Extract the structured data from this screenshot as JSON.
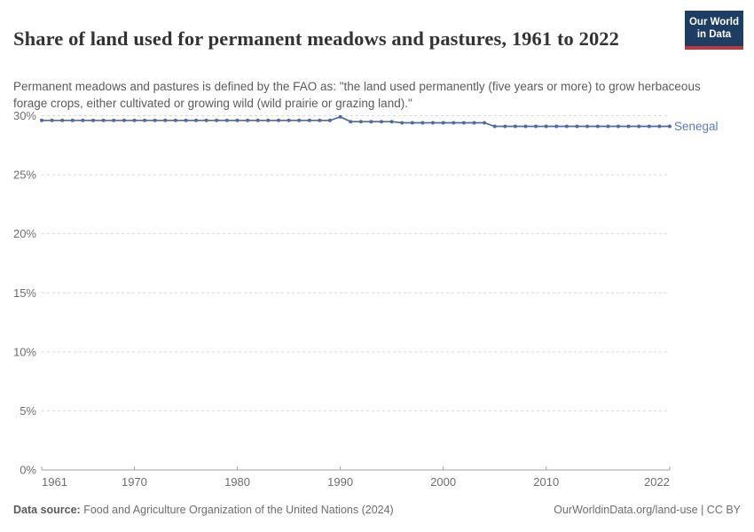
{
  "header": {
    "title": "Share of land used for permanent meadows and pastures, 1961 to 2022",
    "subtitle": "Permanent meadows and pastures is defined by the FAO as: \"the land used permanently (five years or more) to grow herbaceous forage crops, either cultivated or growing wild (wild prairie or grazing land).\"",
    "logo": {
      "line1": "Our World",
      "line2": "in Data"
    }
  },
  "chart_data": {
    "type": "line",
    "title": "Share of land used for permanent meadows and pastures, 1961 to 2022",
    "xlabel": "",
    "ylabel": "",
    "xlim": [
      1961,
      2022
    ],
    "ylim": [
      0,
      30
    ],
    "x_ticks": [
      1961,
      1970,
      1980,
      1990,
      2000,
      2010,
      2022
    ],
    "y_ticks": [
      0,
      5,
      10,
      15,
      20,
      25,
      30
    ],
    "y_tick_suffix": "%",
    "grid": "horizontal-dashed",
    "legend_position": "end-of-line-label",
    "series": [
      {
        "name": "Senegal",
        "x": [
          1961,
          1962,
          1963,
          1964,
          1965,
          1966,
          1967,
          1968,
          1969,
          1970,
          1971,
          1972,
          1973,
          1974,
          1975,
          1976,
          1977,
          1978,
          1979,
          1980,
          1981,
          1982,
          1983,
          1984,
          1985,
          1986,
          1987,
          1988,
          1989,
          1990,
          1991,
          1992,
          1993,
          1994,
          1995,
          1996,
          1997,
          1998,
          1999,
          2000,
          2001,
          2002,
          2003,
          2004,
          2005,
          2006,
          2007,
          2008,
          2009,
          2010,
          2011,
          2012,
          2013,
          2014,
          2015,
          2016,
          2017,
          2018,
          2019,
          2020,
          2021,
          2022
        ],
        "values": [
          29.6,
          29.6,
          29.6,
          29.6,
          29.6,
          29.6,
          29.6,
          29.6,
          29.6,
          29.6,
          29.6,
          29.6,
          29.6,
          29.6,
          29.6,
          29.6,
          29.6,
          29.6,
          29.6,
          29.6,
          29.6,
          29.6,
          29.6,
          29.6,
          29.6,
          29.6,
          29.6,
          29.6,
          29.6,
          29.9,
          29.5,
          29.5,
          29.5,
          29.5,
          29.5,
          29.4,
          29.4,
          29.4,
          29.4,
          29.4,
          29.4,
          29.4,
          29.4,
          29.4,
          29.1,
          29.1,
          29.1,
          29.1,
          29.1,
          29.1,
          29.1,
          29.1,
          29.1,
          29.1,
          29.1,
          29.1,
          29.1,
          29.1,
          29.1,
          29.1,
          29.1,
          29.1
        ]
      }
    ]
  },
  "footer": {
    "datasource_label": "Data source:",
    "datasource_text": " Food and Agriculture Organization of the United Nations (2024)",
    "credit": "OurWorldinData.org/land-use | CC BY"
  },
  "colors": {
    "series_line": "#4c6ba5",
    "series_label": "#5b7cbf",
    "gridline": "#d9d9d9",
    "axis": "#a3a3a3",
    "tick_label": "#6e6e6e",
    "logo_bg": "#1d3d63",
    "logo_red": "#c0373d"
  }
}
